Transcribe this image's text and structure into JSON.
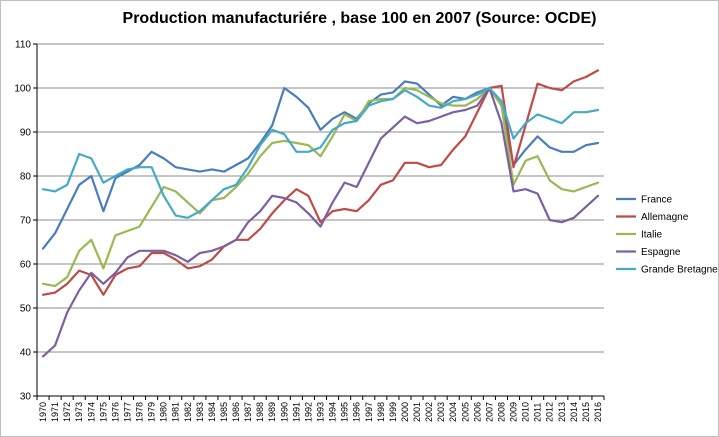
{
  "chart_data": {
    "type": "line",
    "title": "Production manufacturiére , base 100 en 2007  (Source: OCDE)",
    "xlabel": "",
    "ylabel": "",
    "ylim": [
      30,
      110
    ],
    "yticks": [
      30,
      40,
      50,
      60,
      70,
      80,
      90,
      100,
      110
    ],
    "grid": true,
    "legend": "right",
    "x": [
      "1970",
      "1971",
      "1972",
      "1973",
      "1974",
      "1975",
      "1976",
      "1977",
      "1978",
      "1979",
      "1980",
      "1981",
      "1982",
      "1983",
      "1984",
      "1985",
      "1986",
      "1987",
      "1988",
      "1989",
      "1990",
      "1991",
      "1992",
      "1993",
      "1994",
      "1995",
      "1996",
      "1997",
      "1998",
      "1999",
      "2000",
      "2001",
      "2002",
      "2003",
      "2004",
      "2005",
      "2006",
      "2007",
      "2008",
      "2009",
      "2010",
      "2011",
      "2012",
      "2013",
      "2014",
      "2015",
      "2016"
    ],
    "series": [
      {
        "name": "France",
        "color": "#4a7ebb",
        "values": [
          63.5,
          67,
          72.5,
          78,
          80,
          72,
          79.5,
          81,
          82.5,
          85.5,
          84,
          82,
          81.5,
          81,
          81.5,
          81,
          82.5,
          84,
          87.5,
          91.5,
          100,
          98,
          95.5,
          90.5,
          93,
          94.5,
          93,
          96.5,
          98.5,
          99,
          101.5,
          101,
          98.5,
          96,
          98,
          97.5,
          99,
          100,
          96,
          82.5,
          86,
          89,
          86.5,
          85.5,
          85.5,
          87,
          87.5
        ]
      },
      {
        "name": "Allemagne",
        "color": "#be4b48",
        "values": [
          53,
          53.5,
          55.5,
          58.5,
          57.5,
          53,
          57.5,
          59,
          59.5,
          62.5,
          62.5,
          61,
          59,
          59.5,
          61,
          64,
          65.5,
          65.5,
          68,
          71.5,
          74.5,
          77,
          75.5,
          69.5,
          72,
          72.5,
          72,
          74.5,
          78,
          79,
          83,
          83,
          82,
          82.5,
          86,
          89,
          94.5,
          100,
          100.5,
          82,
          91.5,
          101,
          100,
          99.5,
          101.5,
          102.5,
          104
        ]
      },
      {
        "name": "Italie",
        "color": "#98b954",
        "values": [
          55.5,
          55,
          57,
          63,
          65.5,
          59,
          66.5,
          67.5,
          68.5,
          73,
          77.5,
          76.5,
          74,
          71.5,
          74.5,
          75,
          77.5,
          80.5,
          84.5,
          87.5,
          88,
          87.5,
          87,
          84.5,
          89,
          94,
          92.5,
          97,
          97.5,
          97.5,
          100,
          99.5,
          98,
          96.5,
          96,
          96,
          97.5,
          100,
          96,
          78,
          83.5,
          84.5,
          79,
          77,
          76.5,
          77.5,
          78.5
        ]
      },
      {
        "name": "Espagne",
        "color": "#7d60a0",
        "values": [
          39,
          41.5,
          49,
          54,
          58,
          55.5,
          58,
          61.5,
          63,
          63,
          63,
          62,
          60.5,
          62.5,
          63,
          64,
          65.5,
          69.5,
          72,
          75.5,
          75,
          74,
          71.5,
          68.5,
          74,
          78.5,
          77.5,
          83,
          88.5,
          91,
          93.5,
          92,
          92.5,
          93.5,
          94.5,
          95,
          96,
          100,
          92,
          76.5,
          77,
          76,
          70,
          69.5,
          70.5,
          73,
          75.5
        ]
      },
      {
        "name": "Grande Bretagne",
        "color": "#46aac5",
        "values": [
          77,
          76.5,
          78,
          85,
          84,
          78.5,
          80,
          81.5,
          82,
          82,
          75.5,
          71,
          70.5,
          72,
          74.5,
          77,
          78,
          82,
          87,
          90.5,
          89.5,
          85.5,
          85.5,
          86.5,
          90.5,
          92,
          92.5,
          96,
          97,
          97.5,
          99.5,
          98,
          96,
          95.5,
          97,
          97.5,
          98.5,
          100,
          97,
          88.5,
          92,
          94,
          93,
          92,
          94.5,
          94.5,
          95
        ]
      }
    ]
  }
}
